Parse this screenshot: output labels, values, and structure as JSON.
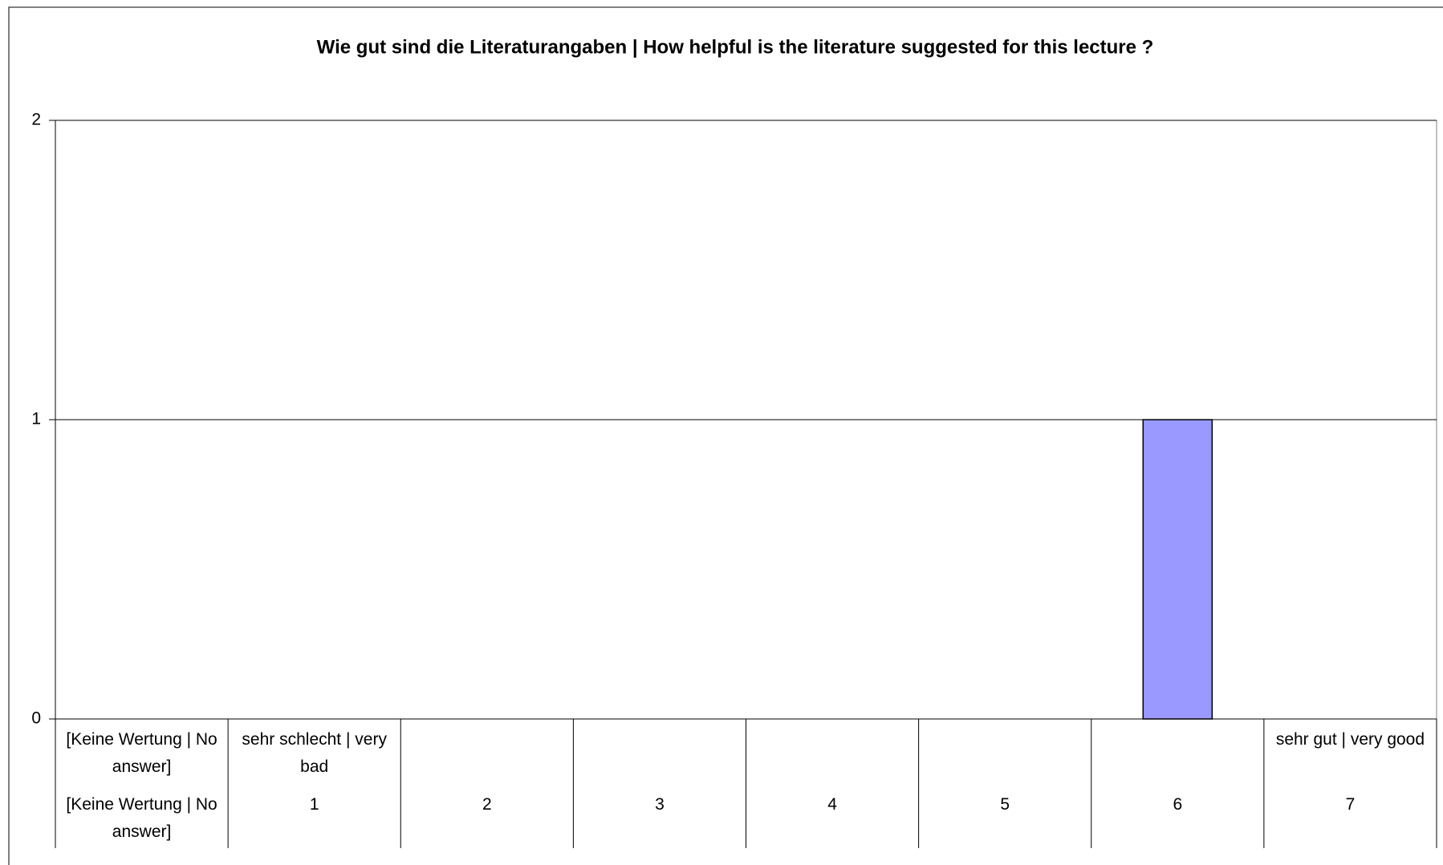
{
  "chart_data": {
    "type": "bar",
    "title": "Wie gut sind die Literaturangaben | How helpful is the literature suggested for this lecture ?",
    "categories": [
      "[Keine Wertung | No answer]",
      "1",
      "2",
      "3",
      "4",
      "5",
      "6",
      "7"
    ],
    "category_descriptions": [
      "[Keine Wertung | No answer]",
      "sehr schlecht | very bad",
      null,
      null,
      null,
      null,
      null,
      "sehr gut | very good"
    ],
    "values": [
      0,
      0,
      0,
      0,
      0,
      0,
      1,
      0
    ],
    "color": "#9999ff",
    "ylim": [
      0,
      2
    ],
    "yticks": [
      0,
      1,
      2
    ],
    "grid": true
  }
}
